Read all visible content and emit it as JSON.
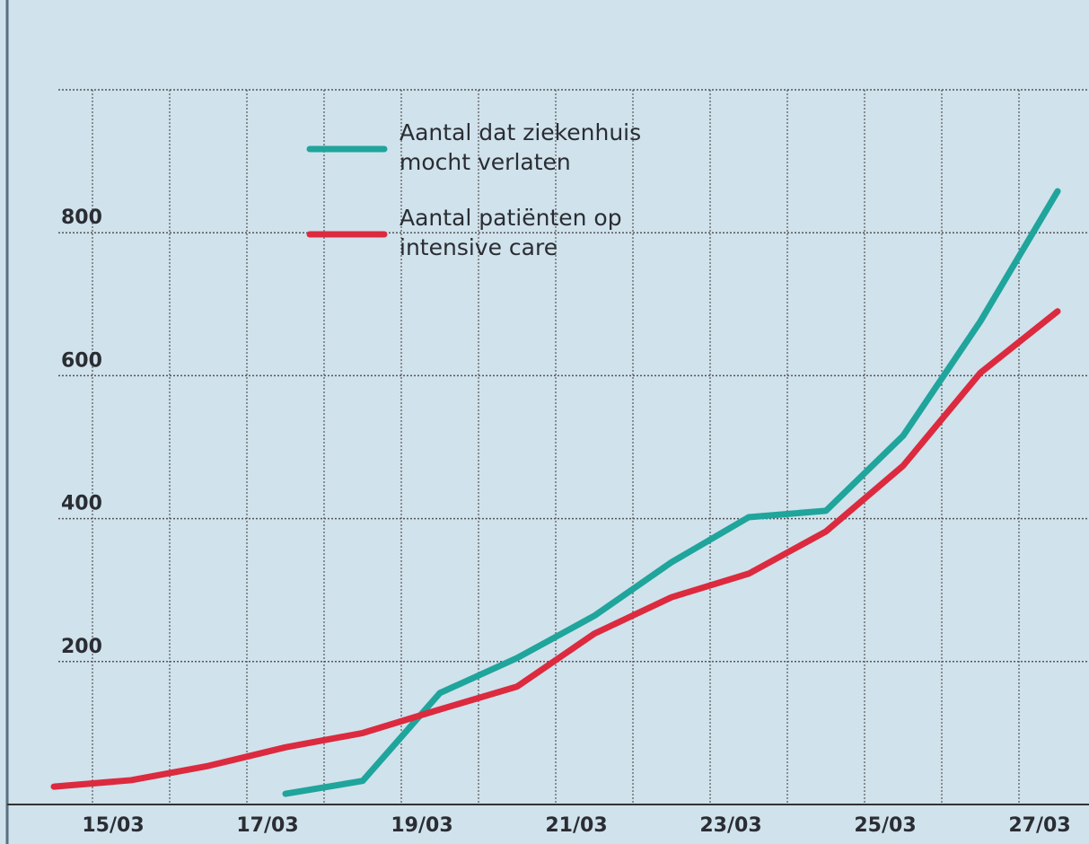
{
  "chart_data": {
    "type": "line",
    "categories": [
      null,
      "15/03",
      null,
      "17/03",
      null,
      "19/03",
      null,
      "21/03",
      null,
      "23/03",
      null,
      "25/03",
      null,
      "27/03"
    ],
    "series": [
      {
        "name": "Aantal dat ziekenhuis mocht verlaten",
        "color": "#1fa59b",
        "values": [
          null,
          null,
          null,
          15,
          33,
          156,
          205,
          264,
          339,
          402,
          411,
          516,
          676,
          858
        ]
      },
      {
        "name": "Aantal patiënten op intensive care",
        "color": "#dc2a3f",
        "values": [
          25,
          34,
          54,
          80,
          100,
          133,
          165,
          239,
          290,
          323,
          382,
          474,
          604,
          690
        ]
      }
    ],
    "ylim": [
      0,
      1000
    ],
    "yticks": [
      200,
      400,
      600,
      800
    ],
    "grid": true
  }
}
